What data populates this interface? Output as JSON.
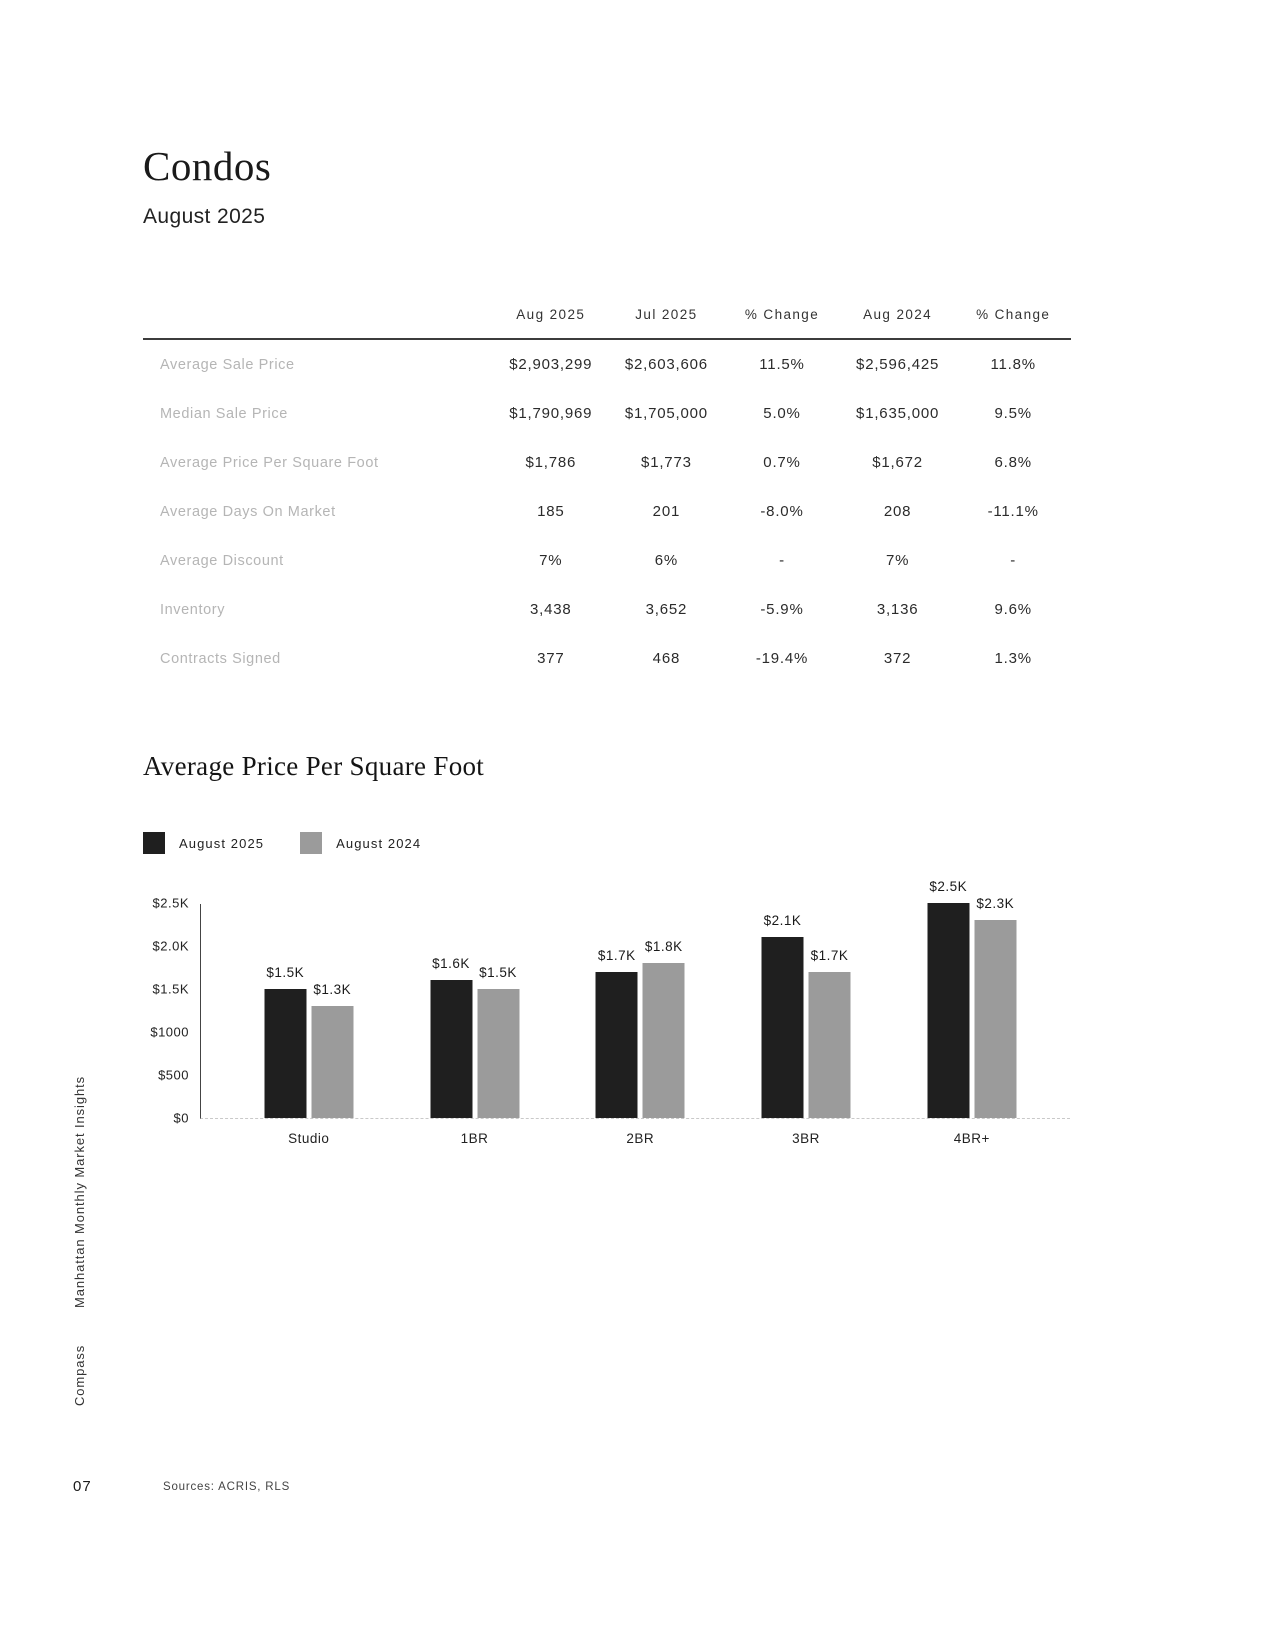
{
  "page": {
    "title": "Condos",
    "subtitle": "August 2025",
    "page_number": "07",
    "sources": "Sources: ACRIS, RLS",
    "sidebar_title": "Manhattan Monthly Market Insights",
    "sidebar_brand": "Compass"
  },
  "table": {
    "columns": [
      "Aug 2025",
      "Jul 2025",
      "% Change",
      "Aug 2024",
      "% Change"
    ],
    "rows": [
      {
        "label": "Average Sale Price",
        "values": [
          "$2,903,299",
          "$2,603,606",
          "11.5%",
          "$2,596,425",
          "11.8%"
        ]
      },
      {
        "label": "Median Sale Price",
        "values": [
          "$1,790,969",
          "$1,705,000",
          "5.0%",
          "$1,635,000",
          "9.5%"
        ]
      },
      {
        "label": "Average Price Per Square Foot",
        "values": [
          "$1,786",
          "$1,773",
          "0.7%",
          "$1,672",
          "6.8%"
        ]
      },
      {
        "label": "Average Days On Market",
        "values": [
          "185",
          "201",
          "-8.0%",
          "208",
          "-11.1%"
        ]
      },
      {
        "label": "Average Discount",
        "values": [
          "7%",
          "6%",
          "-",
          "7%",
          "-"
        ]
      },
      {
        "label": "Inventory",
        "values": [
          "3,438",
          "3,652",
          "-5.9%",
          "3,136",
          "9.6%"
        ]
      },
      {
        "label": "Contracts Signed",
        "values": [
          "377",
          "468",
          "-19.4%",
          "372",
          "1.3%"
        ]
      }
    ]
  },
  "section": {
    "title": "Average Price Per Square Foot"
  },
  "chart_data": {
    "type": "bar",
    "title": "Average Price Per Square Foot",
    "categories": [
      "Studio",
      "1BR",
      "2BR",
      "3BR",
      "4BR+"
    ],
    "series": [
      {
        "name": "August 2025",
        "color": "#1f1f1f",
        "values": [
          1500,
          1600,
          1700,
          2100,
          2500
        ],
        "labels": [
          "$1.5K",
          "$1.6K",
          "$1.7K",
          "$2.1K",
          "$2.5K"
        ]
      },
      {
        "name": "August 2024",
        "color": "#9b9b9b",
        "values": [
          1300,
          1500,
          1800,
          1700,
          2300
        ],
        "labels": [
          "$1.3K",
          "$1.5K",
          "$1.8K",
          "$1.7K",
          "$2.3K"
        ]
      }
    ],
    "ylim": [
      0,
      2500
    ],
    "y_ticks": [
      {
        "value": 2500,
        "label": "$2.5K"
      },
      {
        "value": 2000,
        "label": "$2.0K"
      },
      {
        "value": 1500,
        "label": "$1.5K"
      },
      {
        "value": 1000,
        "label": "$1000"
      },
      {
        "value": 500,
        "label": "$500"
      },
      {
        "value": 0,
        "label": "$0"
      }
    ],
    "legend_position": "top-left",
    "grid": false
  }
}
